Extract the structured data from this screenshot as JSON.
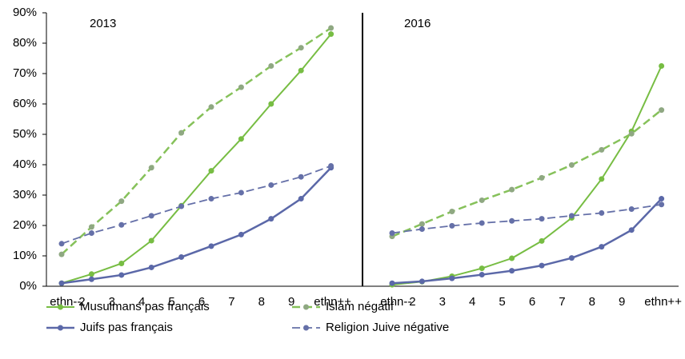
{
  "chart_data": {
    "type": "line",
    "panels": [
      "2013",
      "2016"
    ],
    "categories": [
      "ethn--",
      "2",
      "3",
      "4",
      "5",
      "6",
      "7",
      "8",
      "9",
      "ethn++"
    ],
    "ylim": [
      0,
      90
    ],
    "yticks": [
      {
        "value": 0,
        "label": "0%"
      },
      {
        "value": 10,
        "label": "10%"
      },
      {
        "value": 20,
        "label": "20%"
      },
      {
        "value": 30,
        "label": "30%"
      },
      {
        "value": 40,
        "label": "40%"
      },
      {
        "value": 50,
        "label": "50%"
      },
      {
        "value": 60,
        "label": "60%"
      },
      {
        "value": 70,
        "label": "70%"
      },
      {
        "value": 80,
        "label": "80%"
      },
      {
        "value": 90,
        "label": "90%"
      }
    ],
    "series": [
      {
        "name": "Musulmans pas français",
        "color": "#77bd43",
        "marker": "#77bd43",
        "dashed": false,
        "width": 2,
        "values": [
          [
            1,
            4,
            7.5,
            15,
            26.5,
            38,
            48.5,
            60,
            71,
            83
          ],
          [
            0.5,
            1.5,
            3.3,
            5.9,
            9.2,
            14.9,
            22.5,
            35.3,
            51,
            72.5
          ]
        ]
      },
      {
        "name": "Islam négatif",
        "color": "#86c15a",
        "marker": "#8fa882",
        "dashed": true,
        "width": 2.5,
        "values": [
          [
            10.5,
            19.5,
            28,
            39,
            50.5,
            59,
            65.5,
            72.5,
            78.5,
            85
          ],
          [
            16.4,
            20.5,
            24.6,
            28.3,
            31.8,
            35.7,
            39.9,
            44.9,
            50.2,
            58
          ]
        ]
      },
      {
        "name": "Juifs pas français",
        "color": "#5b68a8",
        "marker": "#5b68a8",
        "dashed": false,
        "width": 2.5,
        "values": [
          [
            1,
            2.3,
            3.7,
            6.2,
            9.6,
            13.2,
            17,
            22.2,
            28.8,
            39
          ],
          [
            1,
            1.6,
            2.6,
            3.8,
            5.1,
            6.8,
            9.3,
            13,
            18.5,
            28.8
          ]
        ]
      },
      {
        "name": "Religion Juive négative",
        "color": "#6570a8",
        "marker": "#6570a8",
        "dashed": true,
        "width": 1.8,
        "values": [
          [
            14,
            17.5,
            20.2,
            23.2,
            26.3,
            28.8,
            30.8,
            33.3,
            36,
            39.6
          ],
          [
            17.5,
            18.8,
            19.9,
            20.8,
            21.5,
            22.2,
            23.2,
            24.1,
            25.4,
            26.9
          ]
        ]
      }
    ]
  }
}
